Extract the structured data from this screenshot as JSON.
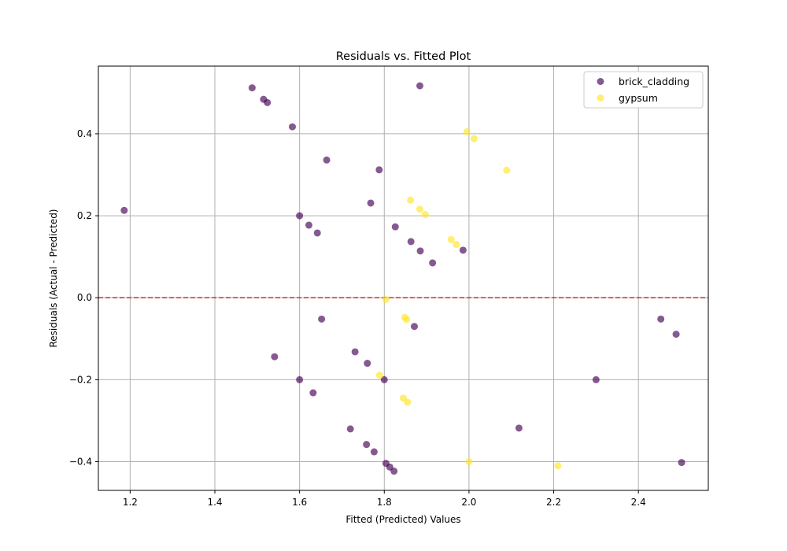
{
  "chart_data": {
    "type": "scatter",
    "title": "Residuals vs. Fitted Plot",
    "xlabel": "Fitted (Predicted) Values",
    "ylabel": "Residuals (Actual - Predicted)",
    "xlim": [
      1.125,
      2.565
    ],
    "ylim": [
      -0.47,
      0.565
    ],
    "xticks": [
      1.2,
      1.4,
      1.6,
      1.8,
      2.0,
      2.2,
      2.4
    ],
    "yticks": [
      -0.4,
      -0.2,
      0.0,
      0.2,
      0.4
    ],
    "grid": true,
    "legend_placement": "top-right",
    "reference_line": {
      "y": 0.0,
      "color": "#d62728",
      "style": "dashed"
    },
    "series": [
      {
        "name": "brick_cladding",
        "color": "#440154",
        "points": [
          [
            1.186,
            0.213
          ],
          [
            1.488,
            0.512
          ],
          [
            1.515,
            0.484
          ],
          [
            1.524,
            0.476
          ],
          [
            1.583,
            0.417
          ],
          [
            1.664,
            0.336
          ],
          [
            1.788,
            0.312
          ],
          [
            1.768,
            0.231
          ],
          [
            1.6,
            0.2
          ],
          [
            1.622,
            0.177
          ],
          [
            1.642,
            0.158
          ],
          [
            1.826,
            0.173
          ],
          [
            1.863,
            0.137
          ],
          [
            1.885,
            0.114
          ],
          [
            1.986,
            0.116
          ],
          [
            1.914,
            0.085
          ],
          [
            1.884,
            0.517
          ],
          [
            1.652,
            -0.052
          ],
          [
            1.871,
            -0.07
          ],
          [
            1.731,
            -0.132
          ],
          [
            1.541,
            -0.144
          ],
          [
            1.76,
            -0.16
          ],
          [
            1.6,
            -0.2
          ],
          [
            1.8,
            -0.2
          ],
          [
            1.632,
            -0.232
          ],
          [
            1.72,
            -0.32
          ],
          [
            1.758,
            -0.358
          ],
          [
            1.776,
            -0.376
          ],
          [
            1.804,
            -0.404
          ],
          [
            1.813,
            -0.413
          ],
          [
            1.823,
            -0.423
          ],
          [
            2.118,
            -0.318
          ],
          [
            2.3,
            -0.2
          ],
          [
            2.453,
            -0.052
          ],
          [
            2.489,
            -0.089
          ],
          [
            2.502,
            -0.402
          ]
        ]
      },
      {
        "name": "gypsum",
        "color": "#fde725",
        "points": [
          [
            1.995,
            0.405
          ],
          [
            2.012,
            0.388
          ],
          [
            2.089,
            0.311
          ],
          [
            1.862,
            0.238
          ],
          [
            1.884,
            0.216
          ],
          [
            1.897,
            0.203
          ],
          [
            1.958,
            0.142
          ],
          [
            1.97,
            0.13
          ],
          [
            1.804,
            -0.004
          ],
          [
            1.848,
            -0.048
          ],
          [
            1.853,
            -0.053
          ],
          [
            1.789,
            -0.189
          ],
          [
            1.845,
            -0.245
          ],
          [
            1.855,
            -0.255
          ],
          [
            2.0,
            -0.4
          ],
          [
            2.21,
            -0.41
          ]
        ]
      }
    ]
  }
}
